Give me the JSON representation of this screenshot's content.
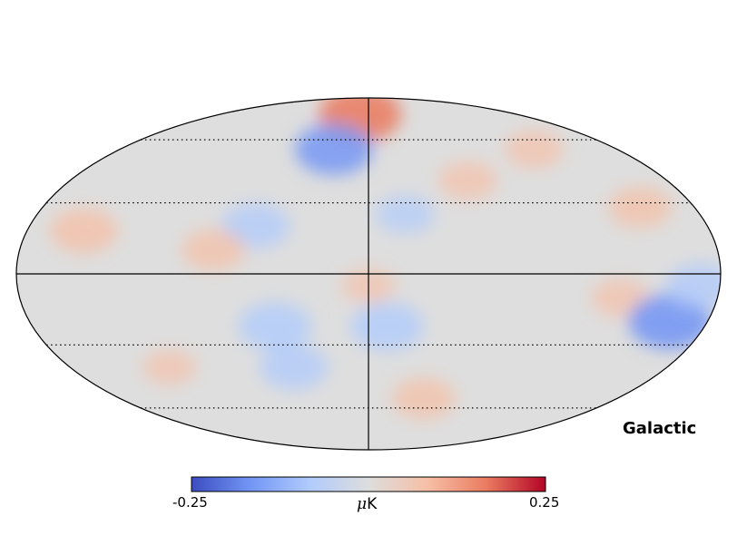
{
  "map": {
    "projection": "mollweide",
    "coordinate_label": "Galactic",
    "graticule": {
      "parallels_deg": [
        -60,
        -30,
        0,
        30,
        60
      ],
      "meridian_step_deg": 30,
      "style": "dotted"
    },
    "hotspots": [
      {
        "lon": -10,
        "lat": 75,
        "sign": 1,
        "amp": 0.9
      },
      {
        "lon": -25,
        "lat": 55,
        "sign": -1,
        "amp": 0.8
      },
      {
        "lon": -60,
        "lat": 20,
        "sign": -1,
        "amp": 0.6
      },
      {
        "lon": -80,
        "lat": 10,
        "sign": 1,
        "amp": 0.5
      },
      {
        "lon": -150,
        "lat": 18,
        "sign": 1,
        "amp": 0.6
      },
      {
        "lon": 150,
        "lat": 28,
        "sign": 1,
        "amp": 0.5
      },
      {
        "lon": 130,
        "lat": -10,
        "sign": 1,
        "amp": 0.4
      },
      {
        "lon": 160,
        "lat": -20,
        "sign": -1,
        "amp": 0.9
      },
      {
        "lon": 170,
        "lat": -5,
        "sign": -1,
        "amp": 0.6
      },
      {
        "lon": 10,
        "lat": -22,
        "sign": -1,
        "amp": 0.7
      },
      {
        "lon": -50,
        "lat": -22,
        "sign": -1,
        "amp": 0.7
      },
      {
        "lon": -45,
        "lat": -40,
        "sign": -1,
        "amp": 0.6
      },
      {
        "lon": 60,
        "lat": 40,
        "sign": 1,
        "amp": 0.4
      },
      {
        "lon": 40,
        "lat": -55,
        "sign": 1,
        "amp": 0.5
      },
      {
        "lon": 0,
        "lat": -5,
        "sign": 1,
        "amp": 0.3
      },
      {
        "lon": 20,
        "lat": 25,
        "sign": -1,
        "amp": 0.4
      },
      {
        "lon": 120,
        "lat": 55,
        "sign": 1,
        "amp": 0.4
      },
      {
        "lon": -120,
        "lat": -40,
        "sign": 1,
        "amp": 0.3
      }
    ]
  },
  "colorbar": {
    "min_label": "-0.25",
    "max_label": "0.25",
    "unit_prefix": "μ",
    "unit_suffix": "K",
    "colormap": "coolwarm",
    "stops": [
      "#3b4cc0",
      "#7396f5",
      "#b0cbfc",
      "#dddddd",
      "#f6bfa6",
      "#ea7b60",
      "#b40426"
    ]
  }
}
